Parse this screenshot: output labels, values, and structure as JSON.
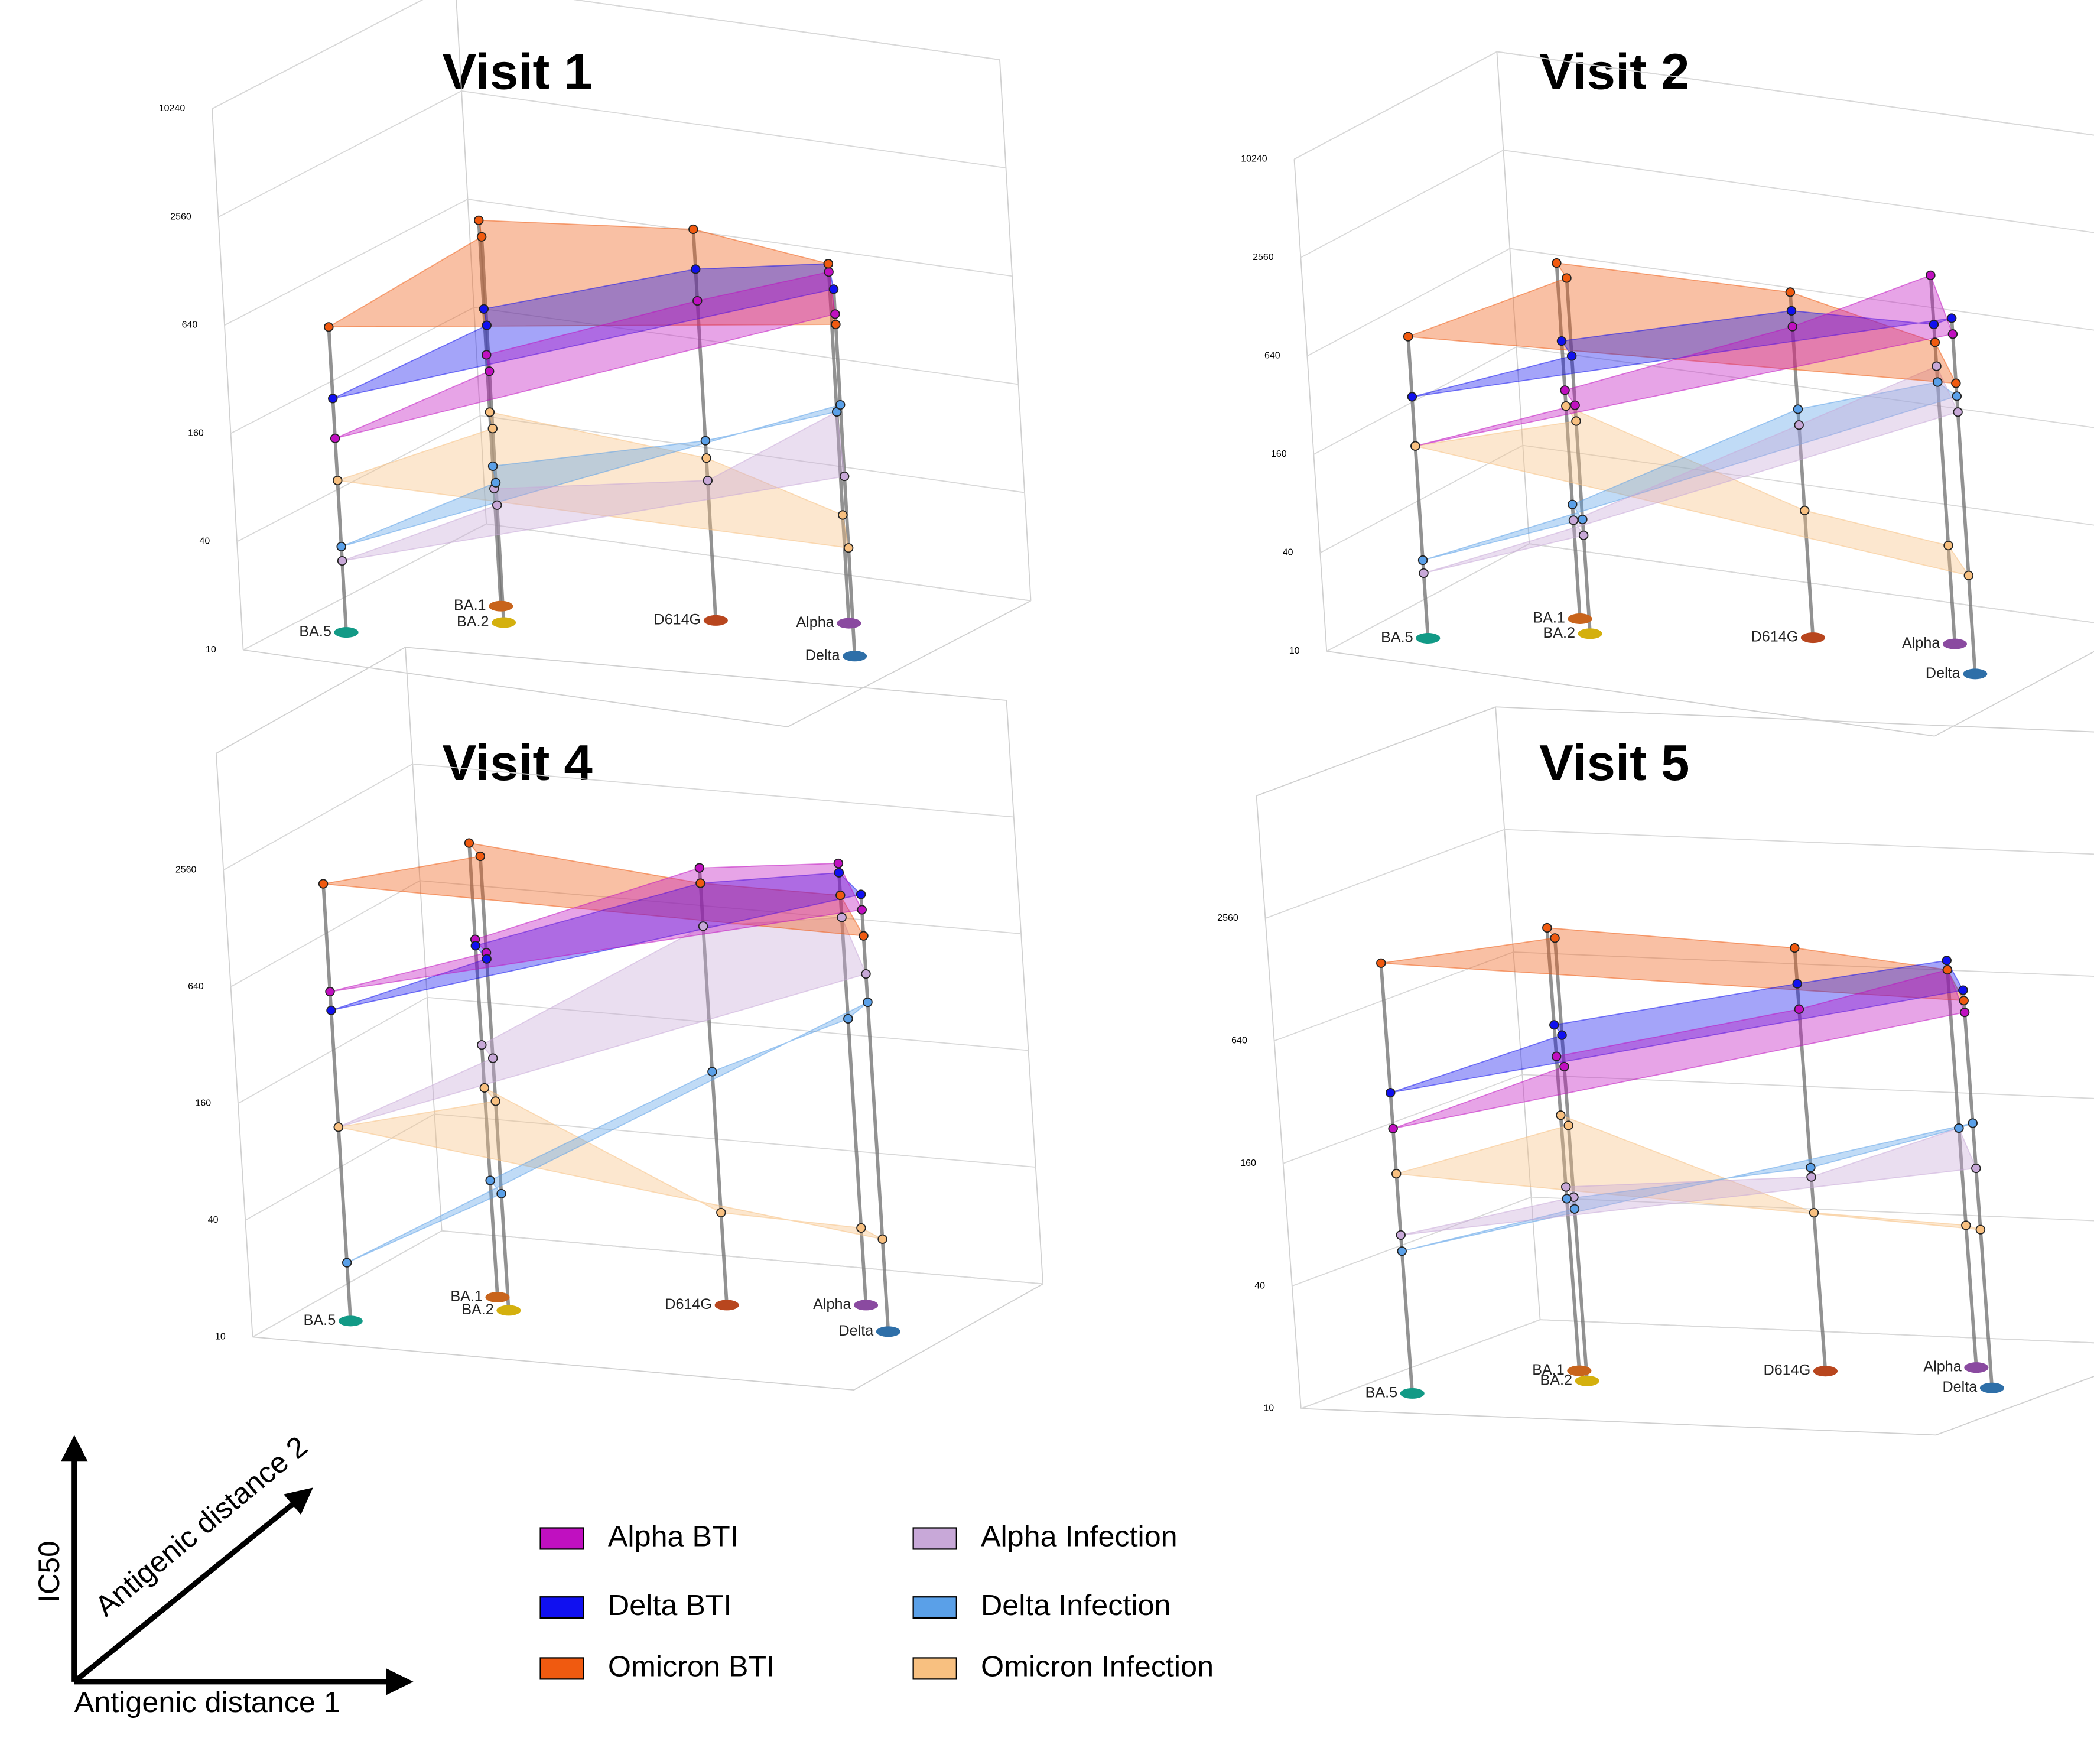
{
  "chart_data": [
    {
      "type": "surface3d",
      "title": "Visit 1",
      "log_z": true,
      "zlim": [
        10,
        10240
      ],
      "zticks": [
        10,
        40,
        160,
        640,
        2560,
        10240
      ],
      "xlim": [
        0,
        10
      ],
      "ylim": [
        0,
        10
      ],
      "categories": [
        "BA.5",
        "BA.2",
        "BA.1",
        "D614G",
        "Alpha",
        "Delta"
      ],
      "category_colors": [
        "#129a86",
        "#d4b00e",
        "#c8641c",
        "#b8461e",
        "#8a4aa0",
        "#2e6fa8"
      ],
      "x": [
        1,
        3,
        2.5,
        6,
        8,
        9
      ],
      "y": [
        2,
        4,
        5,
        6,
        7,
        5
      ],
      "series": [
        {
          "name": "Alpha BTI",
          "color": "#c010c0",
          "values": [
            120,
            250,
            250,
            600,
            900,
            800
          ]
        },
        {
          "name": "Delta BTI",
          "color": "#1010f0",
          "values": [
            200,
            450,
            450,
            900,
            1000,
            1100
          ]
        },
        {
          "name": "Omicron BTI",
          "color": "#f05a10",
          "values": [
            500,
            1400,
            1400,
            1500,
            1000,
            700
          ]
        },
        {
          "name": "Alpha Infection",
          "color": "#c8a8d8",
          "values": [
            25,
            45,
            45,
            60,
            150,
            100
          ]
        },
        {
          "name": "Delta Infection",
          "color": "#5aa0e8",
          "values": [
            30,
            60,
            60,
            100,
            150,
            250
          ]
        },
        {
          "name": "Omicron Infection",
          "color": "#f8c080",
          "values": [
            70,
            120,
            120,
            80,
            40,
            40
          ]
        }
      ]
    },
    {
      "type": "surface3d",
      "title": "Visit 2",
      "log_z": true,
      "zlim": [
        10,
        10240
      ],
      "zticks": [
        10,
        40,
        160,
        640,
        2560,
        10240
      ],
      "xlim": [
        0,
        10
      ],
      "ylim": [
        0,
        10
      ],
      "categories": [
        "BA.5",
        "BA.2",
        "BA.1",
        "D614G",
        "Alpha",
        "Delta"
      ],
      "category_colors": [
        "#129a86",
        "#d4b00e",
        "#c8641c",
        "#b8461e",
        "#8a4aa0",
        "#2e6fa8"
      ],
      "x": [
        1,
        3,
        2.5,
        6,
        8,
        9
      ],
      "y": [
        2,
        4,
        5,
        6,
        7,
        5
      ],
      "series": [
        {
          "name": "Alpha BTI",
          "color": "#c010c0",
          "values": [
            150,
            250,
            250,
            800,
            1800,
            1200
          ]
        },
        {
          "name": "Delta BTI",
          "color": "#1010f0",
          "values": [
            300,
            500,
            500,
            1000,
            900,
            1500
          ]
        },
        {
          "name": "Omicron BTI",
          "color": "#f05a10",
          "values": [
            700,
            1500,
            1500,
            1300,
            700,
            600
          ]
        },
        {
          "name": "Alpha Infection",
          "color": "#c8a8d8",
          "values": [
            25,
            40,
            40,
            200,
            500,
            400
          ]
        },
        {
          "name": "Delta Infection",
          "color": "#5aa0e8",
          "values": [
            30,
            50,
            50,
            250,
            400,
            500
          ]
        },
        {
          "name": "Omicron Infection",
          "color": "#f8c080",
          "values": [
            150,
            200,
            200,
            60,
            40,
            40
          ]
        }
      ]
    },
    {
      "type": "surface3d",
      "title": "Visit 4",
      "log_z": true,
      "zlim": [
        10,
        10240
      ],
      "zticks": [
        10,
        40,
        160,
        640,
        2560
      ],
      "xlim": [
        0,
        10
      ],
      "ylim": [
        0,
        10
      ],
      "categories": [
        "BA.5",
        "BA.2",
        "BA.1",
        "D614G",
        "Alpha",
        "Delta"
      ],
      "category_colors": [
        "#129a86",
        "#d4b00e",
        "#c8641c",
        "#b8461e",
        "#8a4aa0",
        "#2e6fa8"
      ],
      "x": [
        1,
        3,
        2.5,
        6,
        8,
        9
      ],
      "y": [
        2,
        4,
        5,
        6,
        7,
        5
      ],
      "series": [
        {
          "name": "Alpha BTI",
          "color": "#c010c0",
          "values": [
            500,
            700,
            700,
            1800,
            1900,
            1500
          ]
        },
        {
          "name": "Delta BTI",
          "color": "#1010f0",
          "values": [
            400,
            650,
            650,
            1500,
            1700,
            1800
          ]
        },
        {
          "name": "Omicron BTI",
          "color": "#f05a10",
          "values": [
            1800,
            2200,
            2200,
            1500,
            1300,
            1100
          ]
        },
        {
          "name": "Alpha Infection",
          "color": "#c8a8d8",
          "values": [
            100,
            200,
            200,
            900,
            1000,
            700
          ]
        },
        {
          "name": "Delta Infection",
          "color": "#5aa0e8",
          "values": [
            20,
            40,
            40,
            160,
            300,
            500
          ]
        },
        {
          "name": "Omicron Infection",
          "color": "#f8c080",
          "values": [
            100,
            120,
            120,
            30,
            25,
            30
          ]
        }
      ]
    },
    {
      "type": "surface3d",
      "title": "Visit 5",
      "log_z": true,
      "zlim": [
        10,
        10240
      ],
      "zticks": [
        10,
        40,
        160,
        640,
        2560
      ],
      "xlim": [
        0,
        10
      ],
      "ylim": [
        0,
        10
      ],
      "categories": [
        "BA.5",
        "BA.2",
        "BA.1",
        "D614G",
        "Alpha",
        "Delta"
      ],
      "category_colors": [
        "#129a86",
        "#d4b00e",
        "#c8641c",
        "#b8461e",
        "#8a4aa0",
        "#2e6fa8"
      ],
      "x": [
        1,
        3,
        2.5,
        6,
        8,
        9
      ],
      "y": [
        2,
        4,
        5,
        6,
        7,
        5
      ],
      "series": [
        {
          "name": "Alpha BTI",
          "color": "#c010c0",
          "values": [
            200,
            350,
            350,
            600,
            900,
            700
          ]
        },
        {
          "name": "Delta BTI",
          "color": "#1010f0",
          "values": [
            300,
            500,
            500,
            800,
            1000,
            900
          ]
        },
        {
          "name": "Omicron BTI",
          "color": "#f05a10",
          "values": [
            1300,
            1500,
            1500,
            1200,
            900,
            800
          ]
        },
        {
          "name": "Alpha Infection",
          "color": "#c8a8d8",
          "values": [
            60,
            80,
            80,
            90,
            150,
            120
          ]
        },
        {
          "name": "Delta Infection",
          "color": "#5aa0e8",
          "values": [
            50,
            70,
            70,
            100,
            150,
            200
          ]
        },
        {
          "name": "Omicron Infection",
          "color": "#f8c080",
          "values": [
            120,
            180,
            180,
            60,
            50,
            60
          ]
        }
      ]
    }
  ],
  "axis_key": {
    "vertical": "IC50",
    "horizontal": "Antigenic distance 1",
    "diagonal": "Antigenic distance 2"
  }
}
